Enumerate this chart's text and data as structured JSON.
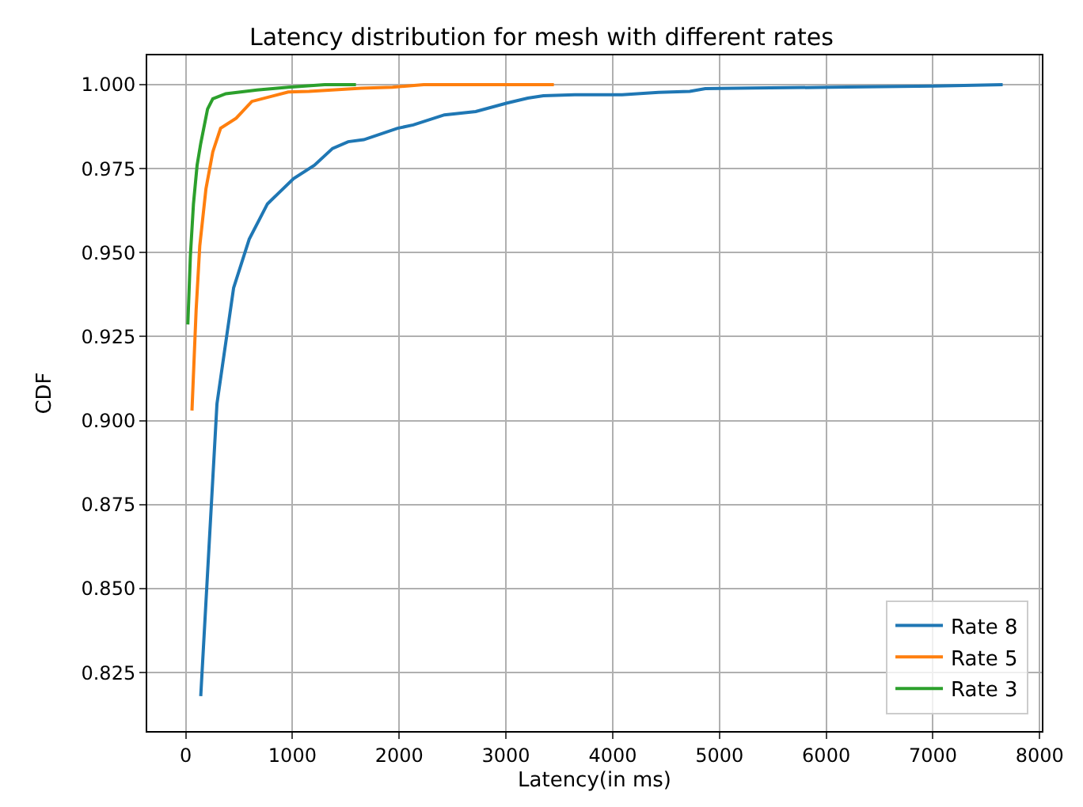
{
  "chart_data": {
    "type": "line",
    "title": "Latency distribution for mesh with different rates",
    "xlabel": "Latency(in ms)",
    "ylabel": "CDF",
    "xlim": [
      -360,
      8020
    ],
    "ylim": [
      0.8076,
      1.0087
    ],
    "xticks": [
      0,
      1000,
      2000,
      3000,
      4000,
      5000,
      6000,
      7000,
      8000
    ],
    "yticks": [
      {
        "value": 0.825,
        "label": "0.825"
      },
      {
        "value": 0.85,
        "label": "0.850"
      },
      {
        "value": 0.875,
        "label": "0.875"
      },
      {
        "value": 0.9,
        "label": "0.900"
      },
      {
        "value": 0.925,
        "label": "0.925"
      },
      {
        "value": 0.95,
        "label": "0.950"
      },
      {
        "value": 0.975,
        "label": "0.975"
      },
      {
        "value": 1.0,
        "label": "1.000"
      }
    ],
    "grid": true,
    "legend": "bottom right",
    "marker": "none",
    "line_style": "solid",
    "series": [
      {
        "name": "Rate 8",
        "color": "#1f77b4",
        "x": [
          141,
          293,
          449,
          595,
          766,
          1010,
          1205,
          1376,
          1522,
          1668,
          1985,
          2132,
          2424,
          2717,
          3010,
          3205,
          3351,
          3644,
          3985,
          4088,
          4429,
          4722,
          4868,
          5307,
          6041,
          7018,
          7653
        ],
        "values": [
          0.818,
          0.905,
          0.9395,
          0.954,
          0.9645,
          0.972,
          0.976,
          0.981,
          0.983,
          0.9836,
          0.987,
          0.988,
          0.991,
          0.992,
          0.9945,
          0.996,
          0.9967,
          0.997,
          0.997,
          0.997,
          0.9977,
          0.998,
          0.9988,
          0.999,
          0.9992,
          0.9996,
          1.0
        ]
      },
      {
        "name": "Rate 5",
        "color": "#ff7f0e",
        "x": [
          59,
          98,
          132,
          190,
          254,
          327,
          473,
          620,
          815,
          961,
          1156,
          1644,
          1937,
          2229,
          3449
        ],
        "values": [
          0.903,
          0.933,
          0.952,
          0.969,
          0.98,
          0.987,
          0.99,
          0.995,
          0.9966,
          0.9978,
          0.998,
          0.9989,
          0.9992,
          1.0,
          1.0
        ]
      },
      {
        "name": "Rate 3",
        "color": "#2ca02c",
        "x": [
          20,
          44,
          73,
          107,
          141,
          205,
          254,
          376,
          668,
          961,
          1302,
          1595
        ],
        "values": [
          0.9286,
          0.949,
          0.9645,
          0.976,
          0.9825,
          0.9927,
          0.9958,
          0.9973,
          0.9984,
          0.9992,
          1.0,
          1.0
        ]
      }
    ]
  }
}
